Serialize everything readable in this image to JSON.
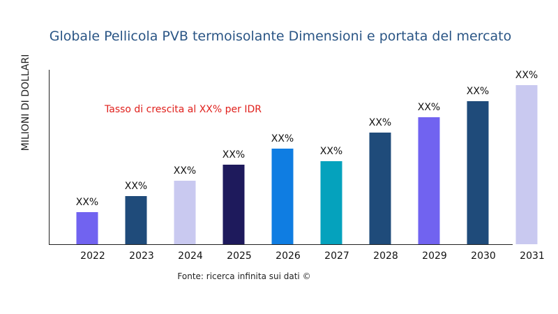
{
  "chart_data": {
    "type": "bar",
    "title": "Globale Pellicola PVB termoisolante Dimensioni e portata del mercato",
    "ylabel": "MILIONI DI DOLLARI",
    "xlabel": "",
    "categories": [
      "2022",
      "2023",
      "2024",
      "2025",
      "2026",
      "2027",
      "2028",
      "2029",
      "2030",
      "2031"
    ],
    "values": [
      46,
      69,
      91,
      114,
      137,
      119,
      160,
      182,
      205,
      228
    ],
    "data_labels": [
      "XX%",
      "XX%",
      "XX%",
      "XX%",
      "XX%",
      "XX%",
      "XX%",
      "XX%",
      "XX%",
      "XX%"
    ],
    "colors": [
      "#7163f0",
      "#1f4b7a",
      "#c9c9f0",
      "#1e1a5c",
      "#0f7de2",
      "#05a2bd",
      "#1f4b7a",
      "#7163f0",
      "#1f4b7a",
      "#c9c9f0"
    ],
    "annotation": "Tasso di crescita al XX% per IDR",
    "annotation_color": "#e0201c",
    "source": "Fonte: ricerca infinita sui dati ©",
    "grid": false,
    "y_ticks_shown": false
  }
}
